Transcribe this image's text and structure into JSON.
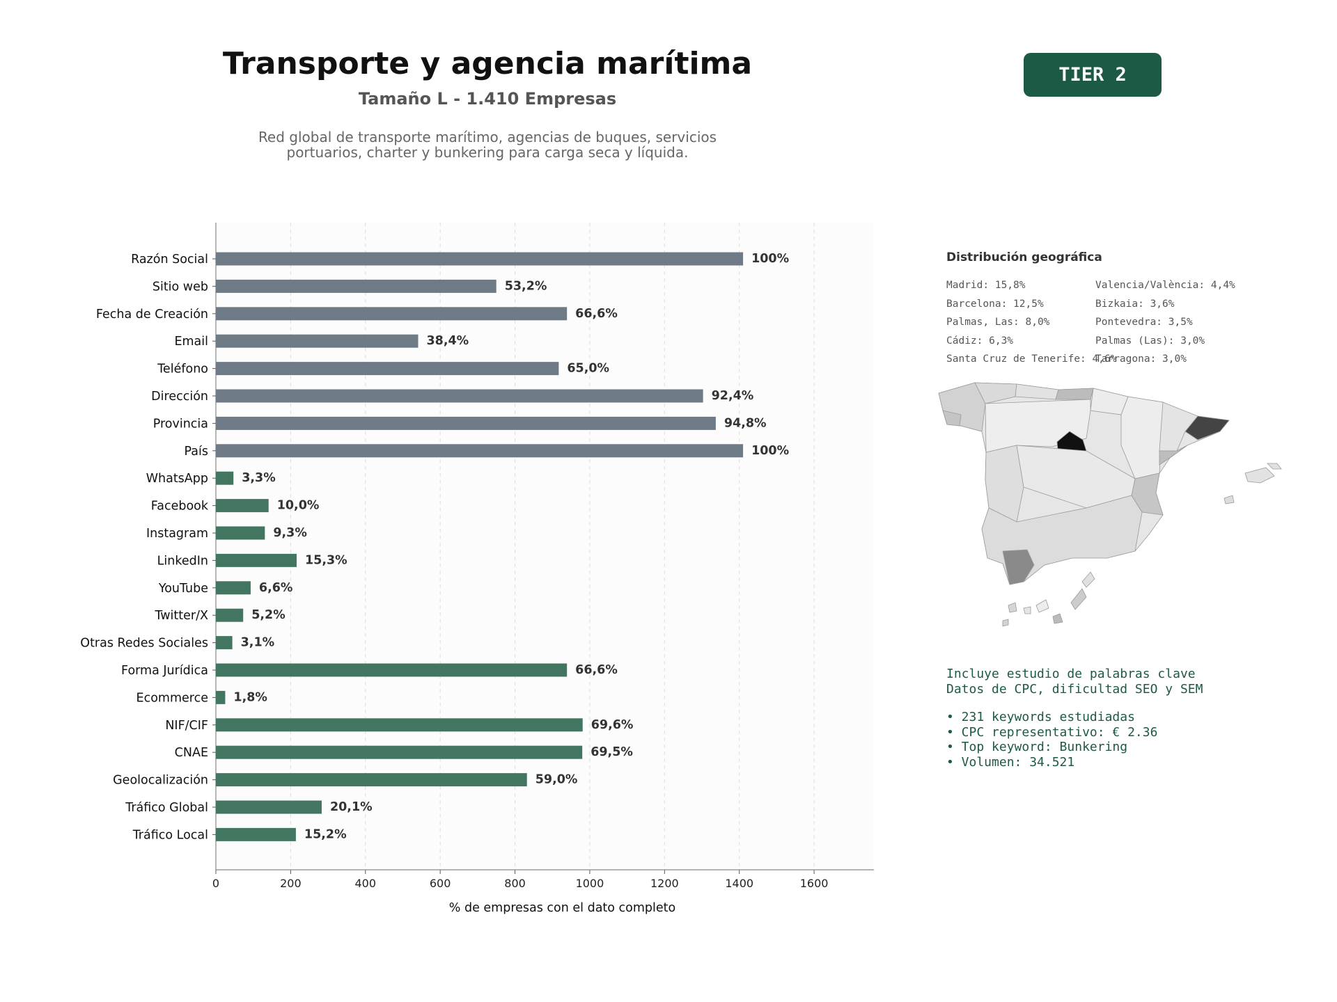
{
  "header": {
    "title": "Transporte y agencia marítima",
    "subtitle": "Tamaño L - 1.410 Empresas",
    "description_line1": "Red global de transporte marítimo, agencias de buques, servicios",
    "description_line2": "portuarios, charter y bunkering para carga seca y líquida.",
    "tier_label": "TIER 2"
  },
  "chart_data": {
    "type": "bar",
    "orientation": "horizontal",
    "xlabel": "% de empresas con el dato completo",
    "xlim": [
      0,
      1760
    ],
    "xticks": [
      0,
      200,
      400,
      600,
      800,
      1000,
      1200,
      1400,
      1600
    ],
    "grid": "vertical dashed",
    "colors": {
      "basic": "#6e7a86",
      "advanced": "#437661"
    },
    "categories": [
      "Razón Social",
      "Sitio web",
      "Fecha de Creación",
      "Email",
      "Teléfono",
      "Dirección",
      "Provincia",
      "País",
      "WhatsApp",
      "Facebook",
      "Instagram",
      "LinkedIn",
      "YouTube",
      "Twitter/X",
      "Otras Redes Sociales",
      "Forma Jurídica",
      "Ecommerce",
      "NIF/CIF",
      "CNAE",
      "Geolocalización",
      "Tráfico Global",
      "Tráfico Local"
    ],
    "values": [
      1410,
      750,
      939,
      541,
      917,
      1303,
      1337,
      1410,
      47,
      141,
      131,
      216,
      93,
      73,
      44,
      939,
      25,
      981,
      980,
      832,
      283,
      214
    ],
    "labels": [
      "100%",
      "53,2%",
      "66,6%",
      "38,4%",
      "65,0%",
      "92,4%",
      "94,8%",
      "100%",
      "3,3%",
      "10,0%",
      "9,3%",
      "15,3%",
      "6,6%",
      "5,2%",
      "3,1%",
      "66,6%",
      "1,8%",
      "69,6%",
      "69,5%",
      "59,0%",
      "20,1%",
      "15,2%"
    ],
    "groups": [
      "basic",
      "basic",
      "basic",
      "basic",
      "basic",
      "basic",
      "basic",
      "basic",
      "advanced",
      "advanced",
      "advanced",
      "advanced",
      "advanced",
      "advanced",
      "advanced",
      "advanced",
      "advanced",
      "advanced",
      "advanced",
      "advanced",
      "advanced",
      "advanced"
    ]
  },
  "geo": {
    "title": "Distribución geográfica",
    "items": [
      "Madrid: 15,8%",
      "Valencia/València: 4,4%",
      "Barcelona: 12,5%",
      "Bizkaia: 3,6%",
      "Palmas, Las: 8,0%",
      "Pontevedra: 3,5%",
      "Cádiz: 6,3%",
      "Palmas (Las): 3,0%",
      "Santa Cruz de Tenerife: 4,6%",
      "Tarragona: 3,0%"
    ]
  },
  "keywords": {
    "line1": "Incluye estudio de palabras clave",
    "line2": "Datos de CPC, dificultad SEO y SEM",
    "bullets": [
      "• 231 keywords estudiadas",
      "• CPC representativo: € 2.36",
      "• Top keyword: Bunkering",
      "• Volumen: 34.521"
    ]
  }
}
